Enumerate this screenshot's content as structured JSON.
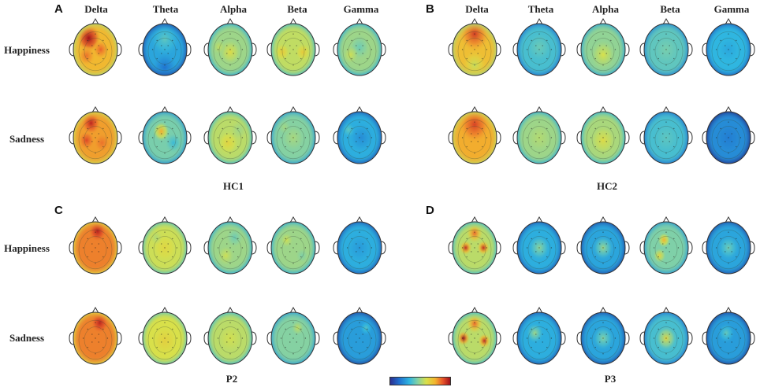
{
  "panels": [
    {
      "letter": "A",
      "subject": "HC1",
      "bands": [
        "Delta",
        "Theta",
        "Alpha",
        "Beta",
        "Gamma"
      ],
      "rows": [
        "Happiness",
        "Sadness"
      ],
      "maps": [
        [
          {
            "base": 0.74,
            "hot": [
              [
                0.35,
                0.28,
                0.28,
                0.32
              ],
              [
                0.62,
                0.5,
                0.18,
                0.12
              ],
              [
                0.3,
                0.62,
                0.2,
                0.1
              ]
            ]
          },
          {
            "base": 0.28,
            "hot": [
              [
                0.5,
                0.3,
                0.35,
                0.12
              ],
              [
                0.5,
                0.85,
                0.3,
                -0.12
              ]
            ]
          },
          {
            "base": 0.5,
            "hot": [
              [
                0.5,
                0.55,
                0.25,
                0.12
              ],
              [
                0.25,
                0.45,
                0.15,
                0.06
              ]
            ]
          },
          {
            "base": 0.56,
            "hot": [
              [
                0.25,
                0.55,
                0.18,
                0.12
              ],
              [
                0.72,
                0.55,
                0.18,
                0.12
              ]
            ]
          },
          {
            "base": 0.5,
            "hot": [
              [
                0.5,
                0.45,
                0.25,
                -0.08
              ],
              [
                0.3,
                0.6,
                0.18,
                0.08
              ]
            ]
          }
        ],
        [
          {
            "base": 0.78,
            "hot": [
              [
                0.4,
                0.22,
                0.22,
                0.18
              ],
              [
                0.3,
                0.55,
                0.18,
                0.12
              ],
              [
                0.65,
                0.6,
                0.18,
                0.06
              ]
            ]
          },
          {
            "base": 0.44,
            "hot": [
              [
                0.42,
                0.38,
                0.2,
                0.32
              ],
              [
                0.7,
                0.6,
                0.2,
                -0.1
              ]
            ]
          },
          {
            "base": 0.55,
            "hot": [
              [
                0.45,
                0.6,
                0.25,
                0.1
              ],
              [
                0.7,
                0.35,
                0.2,
                -0.05
              ]
            ]
          },
          {
            "base": 0.46,
            "hot": [
              [
                0.5,
                0.5,
                0.28,
                0.06
              ],
              [
                0.3,
                0.3,
                0.15,
                0.05
              ]
            ]
          },
          {
            "base": 0.3,
            "hot": [
              [
                0.55,
                0.5,
                0.3,
                -0.08
              ],
              [
                0.25,
                0.35,
                0.15,
                0.1
              ]
            ]
          }
        ]
      ]
    },
    {
      "letter": "B",
      "subject": "HC2",
      "bands": [
        "Delta",
        "Theta",
        "Alpha",
        "Beta",
        "Gamma"
      ],
      "rows": [
        "Happiness",
        "Sadness"
      ],
      "maps": [
        [
          {
            "base": 0.72,
            "hot": [
              [
                0.5,
                0.2,
                0.35,
                0.2
              ],
              [
                0.5,
                0.8,
                0.3,
                -0.15
              ]
            ]
          },
          {
            "base": 0.36,
            "hot": [
              [
                0.5,
                0.45,
                0.3,
                0.06
              ]
            ]
          },
          {
            "base": 0.48,
            "hot": [
              [
                0.5,
                0.6,
                0.3,
                0.12
              ]
            ]
          },
          {
            "base": 0.4,
            "hot": [
              [
                0.5,
                0.5,
                0.3,
                0.04
              ]
            ]
          },
          {
            "base": 0.32,
            "hot": [
              [
                0.5,
                0.5,
                0.25,
                -0.04
              ]
            ]
          }
        ],
        [
          {
            "base": 0.76,
            "hot": [
              [
                0.5,
                0.25,
                0.35,
                0.15
              ]
            ]
          },
          {
            "base": 0.5,
            "hot": [
              [
                0.5,
                0.5,
                0.3,
                0.04
              ]
            ]
          },
          {
            "base": 0.52,
            "hot": [
              [
                0.5,
                0.55,
                0.3,
                0.1
              ]
            ]
          },
          {
            "base": 0.36,
            "hot": [
              [
                0.5,
                0.5,
                0.3,
                0.04
              ]
            ]
          },
          {
            "base": 0.22,
            "hot": [
              [
                0.5,
                0.5,
                0.3,
                -0.04
              ]
            ]
          }
        ]
      ]
    },
    {
      "letter": "C",
      "subject": "P2",
      "bands": [
        "Delta",
        "Theta",
        "Alpha",
        "Beta",
        "Gamma"
      ],
      "rows": [
        "Happiness",
        "Sadness"
      ],
      "maps": [
        [
          {
            "base": 0.82,
            "hot": [
              [
                0.55,
                0.18,
                0.2,
                0.15
              ]
            ]
          },
          {
            "base": 0.58,
            "hot": [
              [
                0.5,
                0.5,
                0.3,
                0.06
              ],
              [
                0.3,
                0.3,
                0.15,
                -0.05
              ]
            ]
          },
          {
            "base": 0.5,
            "hot": [
              [
                0.6,
                0.3,
                0.2,
                -0.08
              ],
              [
                0.4,
                0.65,
                0.2,
                0.08
              ]
            ]
          },
          {
            "base": 0.5,
            "hot": [
              [
                0.35,
                0.35,
                0.15,
                0.08
              ],
              [
                0.7,
                0.65,
                0.15,
                -0.05
              ]
            ]
          },
          {
            "base": 0.3,
            "hot": [
              [
                0.5,
                0.5,
                0.3,
                -0.05
              ]
            ]
          }
        ],
        [
          {
            "base": 0.82,
            "hot": [
              [
                0.6,
                0.2,
                0.2,
                0.14
              ]
            ]
          },
          {
            "base": 0.6,
            "hot": [
              [
                0.5,
                0.55,
                0.3,
                0.06
              ]
            ]
          },
          {
            "base": 0.55,
            "hot": [
              [
                0.5,
                0.5,
                0.3,
                0.04
              ]
            ]
          },
          {
            "base": 0.46,
            "hot": [
              [
                0.6,
                0.3,
                0.15,
                0.1
              ]
            ]
          },
          {
            "base": 0.26,
            "hot": [
              [
                0.65,
                0.3,
                0.15,
                0.12
              ]
            ]
          }
        ]
      ]
    },
    {
      "letter": "D",
      "subject": "P3",
      "bands": [
        "Delta",
        "Theta",
        "Alpha",
        "Beta",
        "Gamma"
      ],
      "rows": [
        "Happiness",
        "Sadness"
      ],
      "maps": [
        [
          {
            "base": 0.55,
            "hot": [
              [
                0.3,
                0.5,
                0.15,
                0.4
              ],
              [
                0.7,
                0.5,
                0.15,
                0.4
              ],
              [
                0.5,
                0.22,
                0.2,
                0.3
              ]
            ]
          },
          {
            "base": 0.3,
            "hot": [
              [
                0.5,
                0.5,
                0.25,
                0.18
              ]
            ]
          },
          {
            "base": 0.28,
            "hot": [
              [
                0.5,
                0.5,
                0.25,
                0.22
              ]
            ]
          },
          {
            "base": 0.45,
            "hot": [
              [
                0.45,
                0.35,
                0.15,
                0.3
              ],
              [
                0.35,
                0.65,
                0.15,
                0.2
              ]
            ]
          },
          {
            "base": 0.28,
            "hot": [
              [
                0.5,
                0.5,
                0.25,
                0.15
              ]
            ]
          }
        ],
        [
          {
            "base": 0.55,
            "hot": [
              [
                0.25,
                0.5,
                0.15,
                0.45
              ],
              [
                0.72,
                0.55,
                0.15,
                0.4
              ],
              [
                0.5,
                0.22,
                0.2,
                0.3
              ]
            ]
          },
          {
            "base": 0.3,
            "hot": [
              [
                0.4,
                0.4,
                0.2,
                0.2
              ]
            ]
          },
          {
            "base": 0.28,
            "hot": [
              [
                0.5,
                0.5,
                0.25,
                0.18
              ]
            ]
          },
          {
            "base": 0.36,
            "hot": [
              [
                0.5,
                0.5,
                0.25,
                0.28
              ]
            ]
          },
          {
            "base": 0.26,
            "hot": [
              [
                0.45,
                0.4,
                0.2,
                0.15
              ]
            ]
          }
        ]
      ]
    }
  ],
  "colors": {
    "low": "#21297f",
    "mid": "#7fd0a8",
    "high": "#a1101a",
    "outline": "#333333"
  }
}
